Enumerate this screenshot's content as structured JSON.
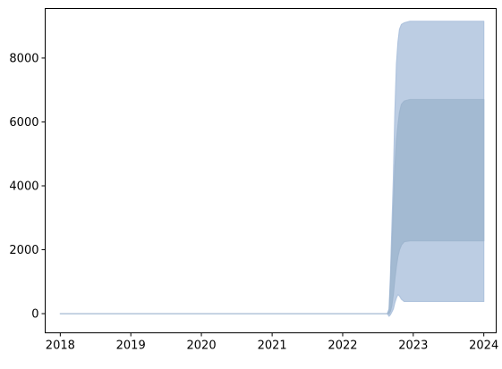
{
  "chart_data": {
    "type": "area",
    "title": "",
    "xlabel": "",
    "ylabel": "",
    "xlim": [
      "2017-10-15",
      "2024-03-05"
    ],
    "ylim": [
      -600,
      9550
    ],
    "grid": false,
    "legend": "none",
    "x_ticks": [
      {
        "value": "2018-01-01",
        "label": "2018"
      },
      {
        "value": "2019-01-01",
        "label": "2019"
      },
      {
        "value": "2020-01-01",
        "label": "2020"
      },
      {
        "value": "2021-01-01",
        "label": "2021"
      },
      {
        "value": "2022-01-01",
        "label": "2022"
      },
      {
        "value": "2023-01-01",
        "label": "2023"
      },
      {
        "value": "2024-01-01",
        "label": "2024"
      }
    ],
    "y_ticks": [
      {
        "value": 0,
        "label": "0"
      },
      {
        "value": 2000,
        "label": "2000"
      },
      {
        "value": 4000,
        "label": "4000"
      },
      {
        "value": 6000,
        "label": "6000"
      },
      {
        "value": 8000,
        "label": "8000"
      }
    ],
    "series": [
      {
        "color": "#b0c4de",
        "opacity": 0.85,
        "points": [
          {
            "x": "2018-01-01",
            "low": 0,
            "high": 0
          },
          {
            "x": "2022-08-20",
            "low": 0,
            "high": 0
          },
          {
            "x": "2022-08-29",
            "low": -80,
            "high": 150
          },
          {
            "x": "2022-09-05",
            "low": -30,
            "high": 1200
          },
          {
            "x": "2022-09-12",
            "low": 50,
            "high": 2600
          },
          {
            "x": "2022-09-20",
            "low": 150,
            "high": 4200
          },
          {
            "x": "2022-09-28",
            "low": 350,
            "high": 6300
          },
          {
            "x": "2022-10-06",
            "low": 500,
            "high": 7800
          },
          {
            "x": "2022-10-14",
            "low": 600,
            "high": 8500
          },
          {
            "x": "2022-10-22",
            "low": 550,
            "high": 8900
          },
          {
            "x": "2022-11-01",
            "low": 450,
            "high": 9050
          },
          {
            "x": "2022-11-15",
            "low": 380,
            "high": 9100
          },
          {
            "x": "2022-12-15",
            "low": 380,
            "high": 9150
          },
          {
            "x": "2024-01-01",
            "low": 380,
            "high": 9150
          }
        ]
      },
      {
        "color": "#9fb6cf",
        "opacity": 0.85,
        "points": [
          {
            "x": "2018-01-01",
            "low": 0,
            "high": 0
          },
          {
            "x": "2022-08-20",
            "low": 0,
            "high": 0
          },
          {
            "x": "2022-08-29",
            "low": 0,
            "high": 80
          },
          {
            "x": "2022-09-05",
            "low": 80,
            "high": 900
          },
          {
            "x": "2022-09-12",
            "low": 250,
            "high": 2000
          },
          {
            "x": "2022-09-20",
            "low": 600,
            "high": 3300
          },
          {
            "x": "2022-09-28",
            "low": 1100,
            "high": 4600
          },
          {
            "x": "2022-10-06",
            "low": 1500,
            "high": 5400
          },
          {
            "x": "2022-10-14",
            "low": 1800,
            "high": 5900
          },
          {
            "x": "2022-10-22",
            "low": 2000,
            "high": 6300
          },
          {
            "x": "2022-11-01",
            "low": 2150,
            "high": 6550
          },
          {
            "x": "2022-11-15",
            "low": 2250,
            "high": 6650
          },
          {
            "x": "2022-12-15",
            "low": 2280,
            "high": 6700
          },
          {
            "x": "2024-01-01",
            "low": 2280,
            "high": 6700
          }
        ]
      }
    ]
  }
}
